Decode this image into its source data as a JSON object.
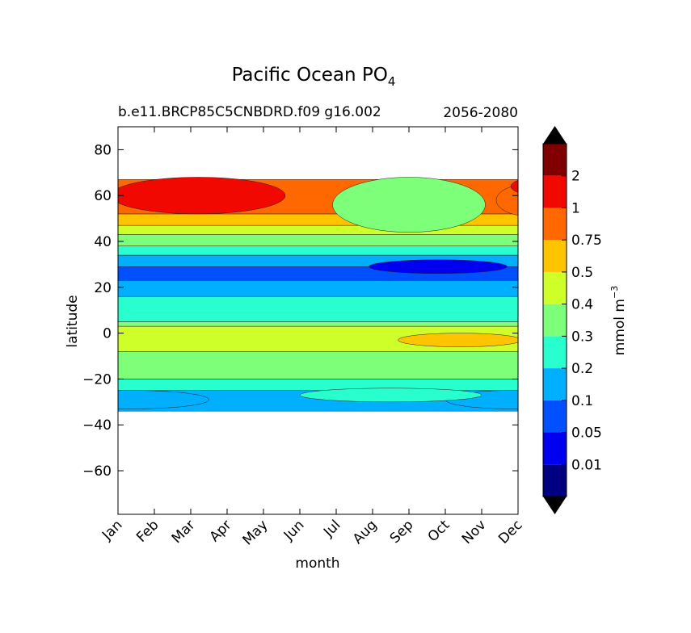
{
  "chart_data": {
    "type": "contour",
    "title": "Pacific Ocean PO",
    "title_subscript": "4",
    "subtitle_left": "b.e11.BRCP85C5CNBDRD.f09 g16.002",
    "subtitle_right": "2056-2080",
    "xlabel": "month",
    "ylabel": "latitude",
    "x_categories": [
      "Jan",
      "Feb",
      "Mar",
      "Apr",
      "May",
      "Jun",
      "Jul",
      "Aug",
      "Sep",
      "Oct",
      "Nov",
      "Dec"
    ],
    "y_ticks": [
      80,
      60,
      40,
      20,
      0,
      -20,
      -40,
      -60
    ],
    "y_tick_labels": [
      "80",
      "60",
      "40",
      "20",
      "0",
      "−20",
      "−40",
      "−60"
    ],
    "ylim": [
      -79,
      90
    ],
    "data_lat_range": [
      -34,
      67
    ],
    "colorbar": {
      "label": "mmol m",
      "label_superscript": "−3",
      "levels": [
        0.01,
        0.05,
        0.1,
        0.2,
        0.3,
        0.4,
        0.5,
        0.75,
        1,
        2
      ],
      "tick_labels": [
        "0.01",
        "0.05",
        "0.1",
        "0.2",
        "0.3",
        "0.4",
        "0.5",
        "0.75",
        "1",
        "2"
      ],
      "colors": [
        "#000080",
        "#0000f0",
        "#0050ff",
        "#00b0ff",
        "#29ffce",
        "#7dff7a",
        "#ceff29",
        "#ffc400",
        "#ff6800",
        "#f10800",
        "#800000"
      ],
      "extend_color": "#000000"
    },
    "bands": [
      {
        "lat_from": -34,
        "lat_to": -25,
        "level": 3
      },
      {
        "lat_from": -25,
        "lat_to": -20,
        "level": 4
      },
      {
        "lat_from": -20,
        "lat_to": -8,
        "level": 5
      },
      {
        "lat_from": -8,
        "lat_to": 3,
        "level": 6
      },
      {
        "lat_from": 3,
        "lat_to": 5,
        "level": 5
      },
      {
        "lat_from": 5,
        "lat_to": 16,
        "level": 4
      },
      {
        "lat_from": 16,
        "lat_to": 23,
        "level": 3
      },
      {
        "lat_from": 23,
        "lat_to": 29,
        "level": 2
      },
      {
        "lat_from": 29,
        "lat_to": 34,
        "level": 3
      },
      {
        "lat_from": 34,
        "lat_to": 38,
        "level": 4
      },
      {
        "lat_from": 38,
        "lat_to": 43,
        "level": 5
      },
      {
        "lat_from": 43,
        "lat_to": 47,
        "level": 6
      },
      {
        "lat_from": 47,
        "lat_to": 52,
        "level": 7
      },
      {
        "lat_from": 52,
        "lat_to": 67,
        "level": 8
      }
    ],
    "features": [
      {
        "shape": "ellipse",
        "month": 8.8,
        "lat": 29,
        "month_radius": 1.9,
        "lat_radius": 3,
        "level": 1
      },
      {
        "shape": "ellipse",
        "month": 2.2,
        "lat": 60,
        "month_radius": 2.4,
        "lat_radius": 8,
        "level": 9
      },
      {
        "shape": "ellipse",
        "month": 11.3,
        "lat": 58,
        "month_radius": 0.9,
        "lat_radius": 7,
        "level": 8
      },
      {
        "shape": "ellipse",
        "month": 11.6,
        "lat": 64,
        "month_radius": 0.8,
        "lat_radius": 4,
        "level": 9
      },
      {
        "shape": "ellipse",
        "month": 8.0,
        "lat": 56,
        "month_radius": 2.1,
        "lat_radius": 12,
        "level": 5
      },
      {
        "shape": "ellipse",
        "month": 9.4,
        "lat": -3,
        "month_radius": 1.7,
        "lat_radius": 3,
        "level": 7
      },
      {
        "shape": "ellipse",
        "month": 0.4,
        "lat": -29,
        "month_radius": 2.1,
        "lat_radius": 4,
        "level": 3
      },
      {
        "shape": "ellipse",
        "month": 10.8,
        "lat": -29,
        "month_radius": 1.8,
        "lat_radius": 4,
        "level": 3
      },
      {
        "shape": "ellipse",
        "month": 7.5,
        "lat": -27,
        "month_radius": 2.5,
        "lat_radius": 3,
        "level": 4
      }
    ]
  }
}
